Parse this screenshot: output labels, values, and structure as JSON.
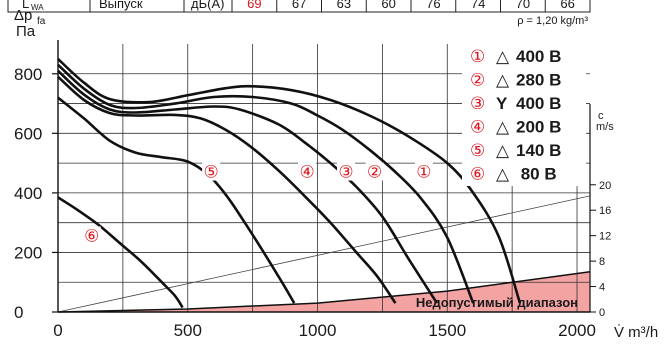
{
  "header_row": {
    "label1": "L",
    "label1_sub": "WA",
    "label2": "Выпуск",
    "unit": "дБ(А)",
    "values": [
      "69",
      "67",
      "63",
      "60",
      "76",
      "74",
      "70",
      "66"
    ]
  },
  "density_note": "ρ = 1,20 kg/m³",
  "chart_data": {
    "type": "line",
    "xlabel": "V̇  m³/h",
    "ylabel_main": "Δp",
    "ylabel_sub": "fa",
    "ylabel_unit": "Па",
    "xlim": [
      0,
      2050
    ],
    "ylim": [
      0,
      900
    ],
    "x_ticks": [
      "0",
      "500",
      "1000",
      "1500",
      "2000"
    ],
    "y_ticks": [
      "0",
      "200",
      "400",
      "600",
      "800"
    ],
    "right_axis": {
      "label": "c",
      "unit": "m/s",
      "ticks": [
        "0",
        "4",
        "8",
        "12",
        "16",
        "20"
      ],
      "tick_values": [
        0,
        4,
        8,
        12,
        16,
        20
      ]
    },
    "legend": [
      {
        "num": "①",
        "sym": "△",
        "text": "400 В"
      },
      {
        "num": "②",
        "sym": "△",
        "text": "280 В"
      },
      {
        "num": "③",
        "sym": "Y",
        "text": "400 В"
      },
      {
        "num": "④",
        "sym": "△",
        "text": "200 В"
      },
      {
        "num": "⑤",
        "sym": "△",
        "text": "140 В"
      },
      {
        "num": "⑥",
        "sym": "△",
        "text": " 80 В"
      }
    ],
    "forbidden_label": "Недопустимый диапазон",
    "forbidden_boundary": [
      [
        0,
        0
      ],
      [
        500,
        10
      ],
      [
        1000,
        30
      ],
      [
        1500,
        70
      ],
      [
        2050,
        135
      ]
    ],
    "system_line": [
      [
        0,
        0
      ],
      [
        2050,
        390
      ]
    ],
    "series": [
      {
        "label": "①",
        "label_at": [
          1410,
          455
        ],
        "points": [
          [
            0,
            850
          ],
          [
            100,
            770
          ],
          [
            200,
            715
          ],
          [
            350,
            705
          ],
          [
            500,
            728
          ],
          [
            650,
            752
          ],
          [
            750,
            758
          ],
          [
            900,
            745
          ],
          [
            1050,
            712
          ],
          [
            1200,
            660
          ],
          [
            1350,
            590
          ],
          [
            1500,
            500
          ],
          [
            1600,
            400
          ],
          [
            1700,
            250
          ],
          [
            1780,
            30
          ]
        ]
      },
      {
        "label": "②",
        "label_at": [
          1220,
          455
        ],
        "points": [
          [
            0,
            830
          ],
          [
            100,
            750
          ],
          [
            200,
            695
          ],
          [
            300,
            685
          ],
          [
            450,
            700
          ],
          [
            600,
            722
          ],
          [
            750,
            722
          ],
          [
            900,
            700
          ],
          [
            1000,
            660
          ],
          [
            1100,
            610
          ],
          [
            1200,
            545
          ],
          [
            1300,
            470
          ],
          [
            1400,
            380
          ],
          [
            1500,
            250
          ],
          [
            1600,
            30
          ]
        ]
      },
      {
        "label": "③",
        "label_at": [
          1110,
          455
        ],
        "points": [
          [
            0,
            810
          ],
          [
            100,
            730
          ],
          [
            200,
            680
          ],
          [
            300,
            670
          ],
          [
            450,
            680
          ],
          [
            600,
            690
          ],
          [
            700,
            680
          ],
          [
            850,
            630
          ],
          [
            950,
            570
          ],
          [
            1050,
            500
          ],
          [
            1150,
            420
          ],
          [
            1250,
            320
          ],
          [
            1350,
            180
          ],
          [
            1460,
            30
          ]
        ]
      },
      {
        "label": "④",
        "label_at": [
          960,
          455
        ],
        "points": [
          [
            0,
            790
          ],
          [
            100,
            712
          ],
          [
            200,
            668
          ],
          [
            300,
            660
          ],
          [
            450,
            662
          ],
          [
            550,
            650
          ],
          [
            650,
            610
          ],
          [
            750,
            550
          ],
          [
            850,
            475
          ],
          [
            950,
            390
          ],
          [
            1050,
            300
          ],
          [
            1150,
            200
          ],
          [
            1230,
            120
          ],
          [
            1300,
            30
          ]
        ]
      },
      {
        "label": "⑤",
        "label_at": [
          590,
          455
        ],
        "points": [
          [
            0,
            720
          ],
          [
            100,
            650
          ],
          [
            200,
            575
          ],
          [
            300,
            535
          ],
          [
            400,
            520
          ],
          [
            500,
            505
          ],
          [
            580,
            460
          ],
          [
            650,
            390
          ],
          [
            720,
            300
          ],
          [
            800,
            190
          ],
          [
            870,
            90
          ],
          [
            910,
            30
          ]
        ]
      },
      {
        "label": "⑥",
        "label_at": [
          130,
          240
        ],
        "points": [
          [
            0,
            385
          ],
          [
            80,
            340
          ],
          [
            160,
            290
          ],
          [
            240,
            230
          ],
          [
            320,
            170
          ],
          [
            400,
            100
          ],
          [
            450,
            55
          ],
          [
            480,
            15
          ]
        ]
      }
    ]
  }
}
